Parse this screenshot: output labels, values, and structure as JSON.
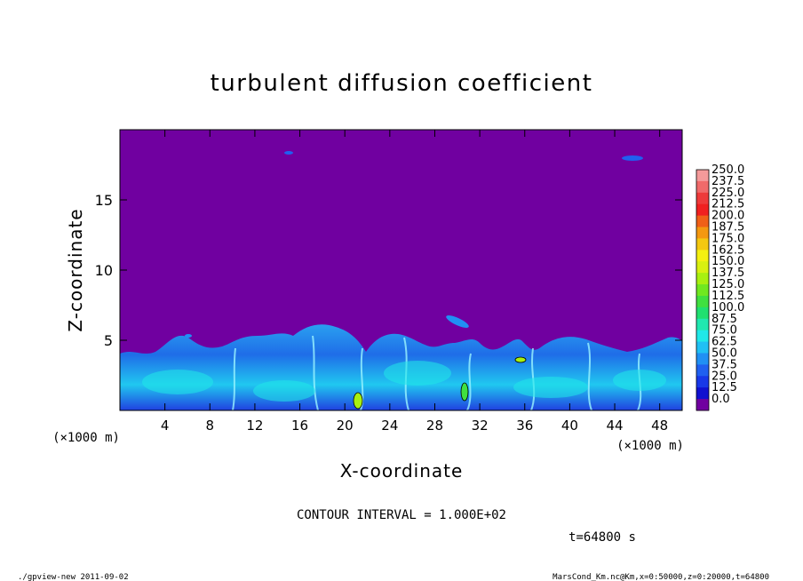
{
  "chart_data": {
    "type": "heatmap",
    "title": "turbulent diffusion coefficient",
    "xlabel": "X-coordinate",
    "ylabel": "Z-coordinate",
    "x_unit": "(×1000 m)",
    "y_unit": "(×1000 m)",
    "xlim": [
      0,
      50
    ],
    "ylim": [
      0,
      20
    ],
    "x_ticks": [
      4,
      8,
      12,
      16,
      20,
      24,
      28,
      32,
      36,
      40,
      44,
      48
    ],
    "y_ticks": [
      5,
      10,
      15
    ],
    "colorbar": {
      "levels": [
        "250.0",
        "237.5",
        "225.0",
        "212.5",
        "200.0",
        "187.5",
        "175.0",
        "162.5",
        "150.0",
        "137.5",
        "125.0",
        "112.5",
        "100.0",
        "87.5",
        "75.0",
        "62.5",
        "50.0",
        "37.5",
        "25.0",
        "12.5",
        "0.0"
      ],
      "colors": [
        "#f49a9a",
        "#f06a6a",
        "#ee3a3a",
        "#f02020",
        "#f06018",
        "#f49810",
        "#f4c810",
        "#f4f010",
        "#d8f010",
        "#a8f010",
        "#70e820",
        "#40e040",
        "#20e070",
        "#20e8b0",
        "#20e8e8",
        "#20c0f4",
        "#2090f4",
        "#2060f0",
        "#1838e8",
        "#1010d0",
        "#7000a0"
      ]
    },
    "background_value_color": "#7000a0",
    "contour_interval": "CONTOUR INTERVAL = 1.000E+02",
    "grid": false,
    "legend": "colorbar-right"
  },
  "footer": {
    "time": "t=64800 s",
    "left": "./gpview-new   2011-09-02",
    "right": "MarsCond_Km.nc@Km,x=0:50000,z=0:20000,t=64800"
  }
}
